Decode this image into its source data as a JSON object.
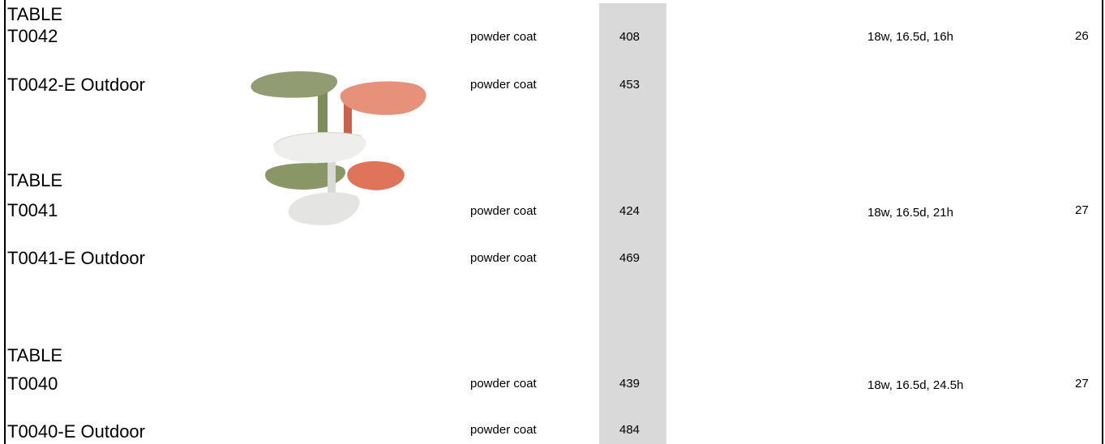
{
  "table_groups": [
    {
      "type_label": "TABLE",
      "rows": [
        {
          "item": "T0042",
          "finish": "powder coat",
          "price": "408",
          "dimensions": "18w, 16.5d, 16h",
          "page": "26"
        },
        {
          "item": "T0042-E Outdoor",
          "finish": "powder coat",
          "price": "453"
        }
      ]
    },
    {
      "type_label": "TABLE",
      "rows": [
        {
          "item": "T0041",
          "finish": "powder coat",
          "price": "424",
          "dimensions": "18w, 16.5d, 21h",
          "page": "27"
        },
        {
          "item": "T0041-E Outdoor",
          "finish": "powder coat",
          "price": "469"
        }
      ]
    },
    {
      "type_label": "TABLE",
      "rows": [
        {
          "item": "T0040",
          "finish": "powder coat",
          "price": "439",
          "dimensions": "18w, 16.5d, 24.5h",
          "page": "27"
        },
        {
          "item": "T0040-E Outdoor",
          "finish": "powder coat",
          "price": "484"
        }
      ]
    }
  ],
  "colors": {
    "price_column_band": "#d9d9d9",
    "table_green": "#8e9a6d",
    "table_coral": "#e58b6e",
    "table_white": "#efefef"
  },
  "product_image": {
    "icon": "side-tables-photo"
  }
}
